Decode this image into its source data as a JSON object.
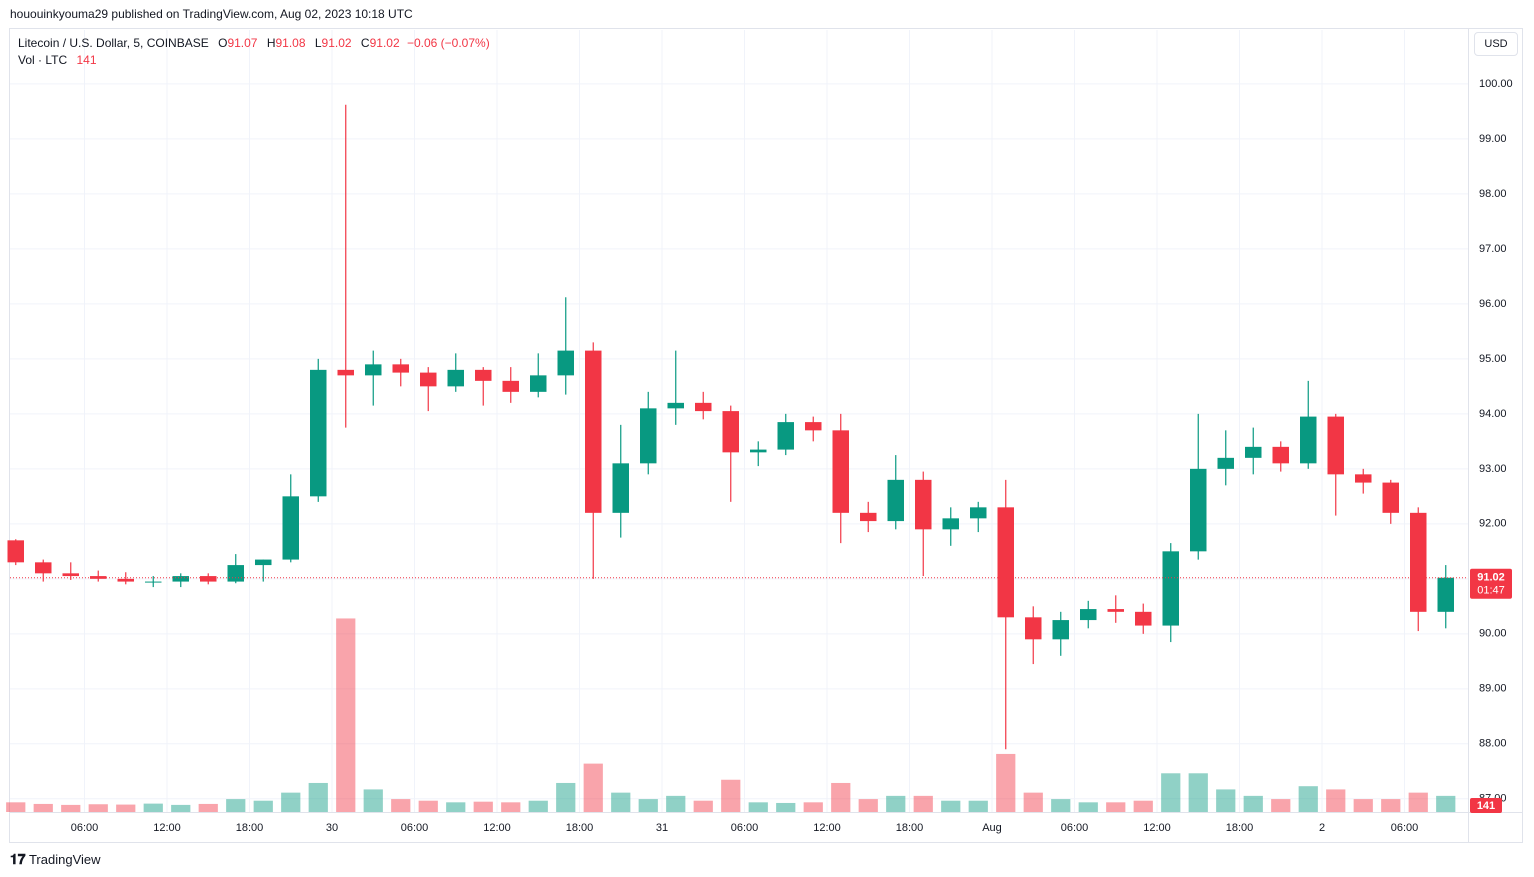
{
  "header": {
    "text": "hououinkyouma29 published on TradingView.com, Aug 02, 2023 10:18 UTC"
  },
  "legend": {
    "symbol": "Litecoin / U.S. Dollar, 5, COINBASE",
    "ohlc": [
      {
        "label": "O",
        "value": 91.07
      },
      {
        "label": "H",
        "value": 91.08
      },
      {
        "label": "L",
        "value": 91.02
      },
      {
        "label": "C",
        "value": 91.02
      }
    ],
    "change": "−0.06 (−0.07%)",
    "volume_label": "Vol · LTC",
    "volume_last": 141
  },
  "currency": "USD",
  "footer": {
    "brand": "TradingView"
  },
  "chart_data": {
    "type": "candlestick",
    "categories": [
      null,
      null,
      null,
      "06:00",
      null,
      null,
      "12:00",
      null,
      null,
      "18:00",
      null,
      null,
      "30",
      null,
      null,
      "06:00",
      null,
      null,
      "12:00",
      null,
      null,
      "18:00",
      null,
      null,
      "31",
      null,
      null,
      "06:00",
      null,
      null,
      "12:00",
      null,
      null,
      "18:00",
      null,
      null,
      "Aug",
      null,
      null,
      "06:00",
      null,
      null,
      "12:00",
      null,
      null,
      "18:00",
      null,
      null,
      "2",
      null,
      null,
      "06:00",
      null
    ],
    "open": [
      91.7,
      91.3,
      91.1,
      91.05,
      91.0,
      90.95,
      90.95,
      91.05,
      90.95,
      91.25,
      91.35,
      92.5,
      94.8,
      94.7,
      94.9,
      94.75,
      94.5,
      94.8,
      94.6,
      94.4,
      94.7,
      95.15,
      92.2,
      93.1,
      94.1,
      94.2,
      94.05,
      93.3,
      93.35,
      93.85,
      93.7,
      92.2,
      92.05,
      92.8,
      91.9,
      92.1,
      92.3,
      90.3,
      89.9,
      90.25,
      90.45,
      90.4,
      90.15,
      91.5,
      93.0,
      93.2,
      93.4,
      93.1,
      93.95,
      92.9,
      92.75,
      92.2,
      90.4
    ],
    "high": [
      91.72,
      91.35,
      91.3,
      91.15,
      91.12,
      91.05,
      91.1,
      91.1,
      91.45,
      91.35,
      92.9,
      95.0,
      99.62,
      95.15,
      95.0,
      94.85,
      95.1,
      94.85,
      94.85,
      95.1,
      96.12,
      95.3,
      93.8,
      94.4,
      95.15,
      94.4,
      94.15,
      93.5,
      94.0,
      93.95,
      94.0,
      92.4,
      93.25,
      92.95,
      92.3,
      92.4,
      92.8,
      90.5,
      90.4,
      90.6,
      90.7,
      90.55,
      91.65,
      94.0,
      93.7,
      93.75,
      93.5,
      94.6,
      94.0,
      93.0,
      92.8,
      92.3,
      91.25
    ],
    "low": [
      91.25,
      90.95,
      90.98,
      90.95,
      90.9,
      90.85,
      90.85,
      90.9,
      90.92,
      90.95,
      91.3,
      92.4,
      93.75,
      94.15,
      94.5,
      94.05,
      94.4,
      94.15,
      94.2,
      94.3,
      94.35,
      91.0,
      91.75,
      92.9,
      93.8,
      93.9,
      92.4,
      93.05,
      93.25,
      93.5,
      91.65,
      91.85,
      91.9,
      91.05,
      91.6,
      91.85,
      87.9,
      89.45,
      89.6,
      90.1,
      90.2,
      90.0,
      89.85,
      91.35,
      92.7,
      92.9,
      92.95,
      93.0,
      92.15,
      92.55,
      92.0,
      90.05,
      90.1
    ],
    "close": [
      91.3,
      91.1,
      91.05,
      91.0,
      90.95,
      90.95,
      91.05,
      90.95,
      91.25,
      91.35,
      92.5,
      94.8,
      94.7,
      94.9,
      94.75,
      94.5,
      94.8,
      94.6,
      94.4,
      94.7,
      95.15,
      92.2,
      93.1,
      94.1,
      94.2,
      94.05,
      93.3,
      93.35,
      93.85,
      93.7,
      92.2,
      92.05,
      92.8,
      91.9,
      92.1,
      92.3,
      90.3,
      89.9,
      90.25,
      90.45,
      90.4,
      90.15,
      91.5,
      93.0,
      93.2,
      93.4,
      93.1,
      93.95,
      92.9,
      92.75,
      92.2,
      90.4,
      91.02
    ],
    "volume": [
      3000,
      2500,
      2200,
      2400,
      2300,
      2600,
      2200,
      2500,
      4000,
      3500,
      6000,
      9000,
      60000,
      7000,
      4000,
      3500,
      3000,
      3200,
      3000,
      3500,
      9000,
      15000,
      6000,
      4000,
      5000,
      3500,
      10000,
      3000,
      2800,
      3000,
      9000,
      4000,
      5000,
      5000,
      3500,
      3500,
      18000,
      6000,
      4000,
      3000,
      3000,
      3500,
      12000,
      12000,
      7000,
      5000,
      4000,
      8000,
      7000,
      4000,
      4000,
      6000,
      5000
    ],
    "vlim": [
      0,
      62000
    ],
    "up_color": "#089981",
    "down_color": "#f23645",
    "ylim": [
      86.76,
      100.98
    ],
    "yticks": [
      {
        "value": 100,
        "label": "100.00"
      },
      {
        "value": 99,
        "label": "99.00"
      },
      {
        "value": 98,
        "label": "98.00"
      },
      {
        "value": 97,
        "label": "97.00"
      },
      {
        "value": 96,
        "label": "96.00"
      },
      {
        "value": 95,
        "label": "95.00"
      },
      {
        "value": 94,
        "label": "94.00"
      },
      {
        "value": 93,
        "label": "93.00"
      },
      {
        "value": 92,
        "label": "92.00"
      },
      {
        "value": 91,
        "label": "91.00"
      },
      {
        "value": 90,
        "label": "90.00"
      },
      {
        "value": 89,
        "label": "89.00"
      },
      {
        "value": 88,
        "label": "88.00"
      },
      {
        "value": 87,
        "label": "87.00"
      }
    ],
    "grid": true,
    "last_price": 91.02,
    "countdown": "01:47"
  }
}
